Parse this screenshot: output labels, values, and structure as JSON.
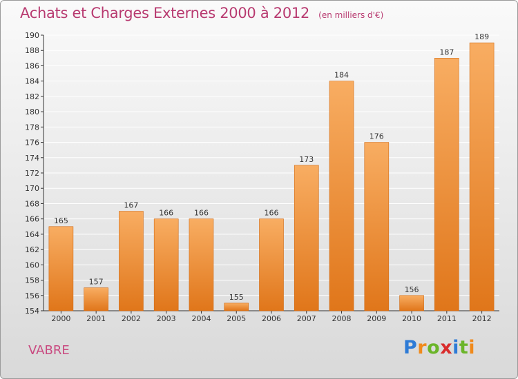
{
  "header": {
    "title": "Achats et Charges Externes 2000 à 2012",
    "subtitle": "(en milliers d'€)"
  },
  "footer": {
    "place": "VABRE",
    "logo": {
      "letters": [
        "P",
        "r",
        "o",
        "x",
        "i",
        "t",
        "i"
      ],
      "colors": [
        "#2e7bd6",
        "#f08a1c",
        "#6bb52a",
        "#d92c2c",
        "#2e7bd6",
        "#6bb52a",
        "#f08a1c"
      ]
    }
  },
  "colors": {
    "title": "#b83a70",
    "bar_light": "#f7a85a",
    "bar_dark": "#e07a1e",
    "grid": "#ffffff",
    "axis": "#333333"
  },
  "chart_data": {
    "type": "bar",
    "title": "Achats et Charges Externes 2000 à 2012",
    "subtitle": "(en milliers d'€)",
    "xlabel": "",
    "ylabel": "",
    "categories": [
      "2000",
      "2001",
      "2002",
      "2003",
      "2004",
      "2005",
      "2006",
      "2007",
      "2008",
      "2009",
      "2010",
      "2011",
      "2012"
    ],
    "values": [
      165,
      157,
      167,
      166,
      166,
      155,
      166,
      173,
      184,
      176,
      156,
      187,
      189
    ],
    "ylim": [
      154,
      190
    ],
    "yticks": [
      154,
      156,
      158,
      160,
      162,
      164,
      166,
      168,
      170,
      172,
      174,
      176,
      178,
      180,
      182,
      184,
      186,
      188,
      190
    ],
    "grid": true,
    "legend": "none"
  }
}
